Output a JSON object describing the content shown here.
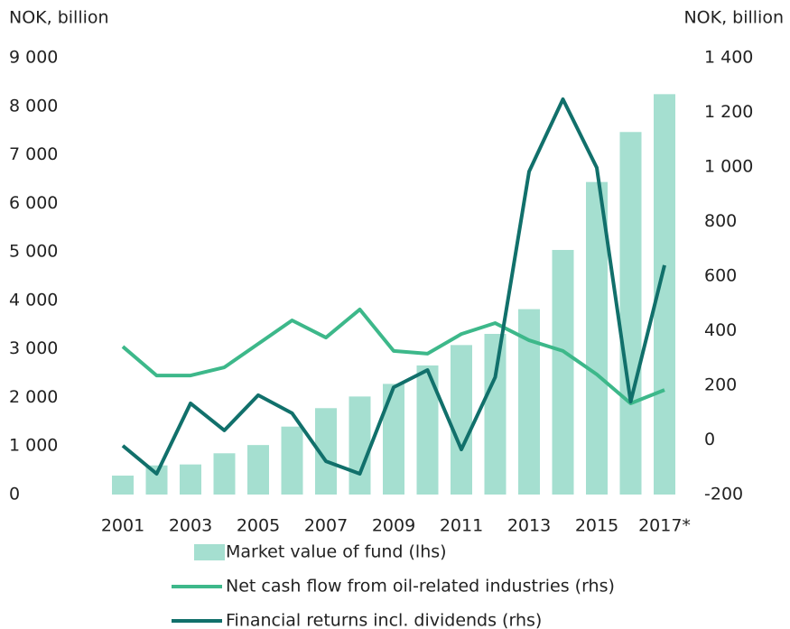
{
  "chart_data": {
    "type": "bar-line",
    "ylabel": "NOK, billion",
    "y2label": "NOK, billion",
    "categories": [
      "2001",
      null,
      "2003",
      null,
      "2005",
      null,
      "2007",
      null,
      "2009",
      null,
      "2011",
      null,
      "2013",
      null,
      "2015",
      null,
      "2017*"
    ],
    "series": [
      {
        "name": "Market value of fund (lhs)",
        "type": "bar",
        "color": "#a5dfd0",
        "axis": "y",
        "values": [
          390,
          600,
          620,
          850,
          1020,
          1400,
          1780,
          2020,
          2280,
          2660,
          3080,
          3310,
          3820,
          5040,
          6440,
          7470,
          8250
        ]
      },
      {
        "name": "Net cash flow from oil-related industries (rhs)",
        "type": "line",
        "color": "#3db88a",
        "axis": "y2",
        "values": [
          342,
          236,
          236,
          266,
          352,
          438,
          375,
          478,
          326,
          316,
          388,
          428,
          365,
          326,
          240,
          134,
          183
        ]
      },
      {
        "name": "Financial returns incl. dividends (rhs)",
        "type": "line",
        "color": "#11706b",
        "axis": "y2",
        "values": [
          -21,
          -124,
          134,
          35,
          164,
          98,
          -78,
          -124,
          193,
          256,
          -35,
          230,
          983,
          1248,
          997,
          140,
          640
        ]
      }
    ],
    "ylim": [
      0,
      9000
    ],
    "yticks": [
      0,
      {
        "value": 1000,
        "label": "1 000"
      },
      {
        "value": 2000,
        "label": "2 000"
      },
      {
        "value": 3000,
        "label": "3 000"
      },
      {
        "value": 4000,
        "label": "4 000"
      },
      {
        "value": 5000,
        "label": "5 000"
      },
      {
        "value": 6000,
        "label": "6 000"
      },
      {
        "value": 7000,
        "label": "7 000"
      },
      {
        "value": 8000,
        "label": "8 000"
      },
      {
        "value": 9000,
        "label": "9 000"
      }
    ],
    "y2lim": [
      -200,
      1400
    ],
    "y2ticks": [
      -200,
      0,
      200,
      400,
      600,
      800,
      {
        "value": 1000,
        "label": "1 000"
      },
      {
        "value": 1200,
        "label": "1 200"
      },
      {
        "value": 1400,
        "label": "1 400"
      }
    ],
    "grid": false
  }
}
